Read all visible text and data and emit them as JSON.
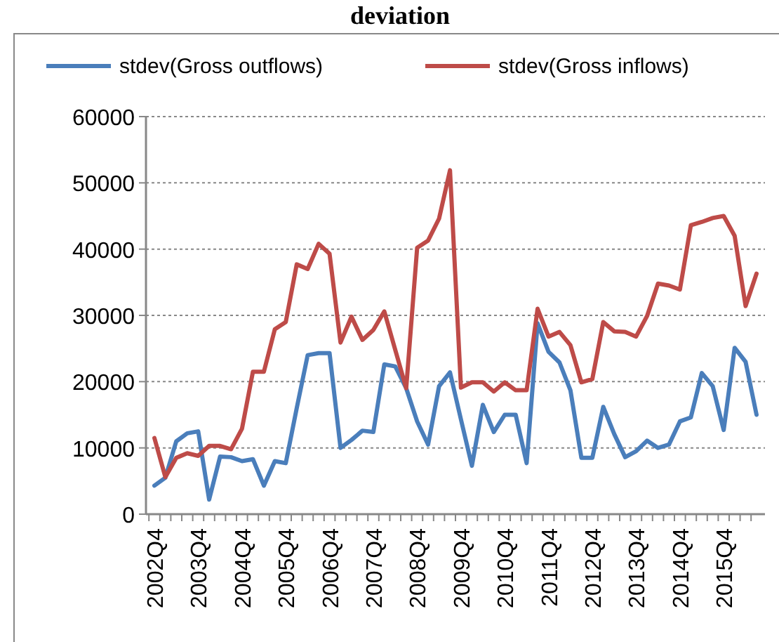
{
  "chart_data": {
    "type": "line",
    "title": "deviation",
    "categories": [
      "2002Q4",
      null,
      null,
      null,
      "2003Q4",
      null,
      null,
      null,
      "2004Q4",
      null,
      null,
      null,
      "2005Q4",
      null,
      null,
      null,
      "2006Q4",
      null,
      null,
      null,
      "2007Q4",
      null,
      null,
      null,
      "2008Q4",
      null,
      null,
      null,
      "2009Q4",
      null,
      null,
      null,
      "2010Q4",
      null,
      null,
      null,
      "2011Q4",
      null,
      null,
      null,
      "2012Q4",
      null,
      null,
      null,
      "2013Q4",
      null,
      null,
      null,
      "2014Q4",
      null,
      null,
      null,
      "2015Q4",
      null,
      null,
      null
    ],
    "series": [
      {
        "name": "stdev(Gross outflows)",
        "color": "#4a7ebb",
        "values": [
          4300,
          5500,
          11000,
          12200,
          12500,
          2200,
          8700,
          8600,
          8000,
          8300,
          4300,
          8000,
          7700,
          16000,
          24000,
          24300,
          24300,
          10000,
          11200,
          12600,
          12400,
          22600,
          22300,
          19000,
          14000,
          10500,
          19300,
          21400,
          14300,
          7300,
          16500,
          12400,
          15000,
          15000,
          7700,
          28800,
          24500,
          22900,
          18700,
          8500,
          8500,
          16200,
          12100,
          8600,
          9500,
          11100,
          10000,
          10500,
          14000,
          14600,
          21300,
          19300,
          12700,
          25100,
          23000,
          15000
        ]
      },
      {
        "name": "stdev(Gross inflows)",
        "color": "#be4b48",
        "values": [
          11500,
          5600,
          8500,
          9200,
          8800,
          10300,
          10300,
          9800,
          12900,
          21500,
          21500,
          27900,
          29000,
          37700,
          37000,
          40800,
          39300,
          25900,
          29800,
          26300,
          27800,
          30600,
          24800,
          19000,
          40200,
          41300,
          44600,
          51900,
          19100,
          19900,
          19900,
          18500,
          19900,
          18700,
          18700,
          31000,
          26800,
          27500,
          25500,
          19900,
          20400,
          29000,
          27600,
          27500,
          26800,
          29900,
          34800,
          34500,
          33900,
          43600,
          44100,
          44700,
          45000,
          42000,
          31400,
          36300
        ]
      }
    ],
    "ylim": [
      0,
      60000
    ],
    "yticks": [
      0,
      10000,
      20000,
      30000,
      40000,
      50000,
      60000
    ],
    "grid": "y",
    "legend": "top",
    "marker": "none",
    "line_style": "solid"
  }
}
